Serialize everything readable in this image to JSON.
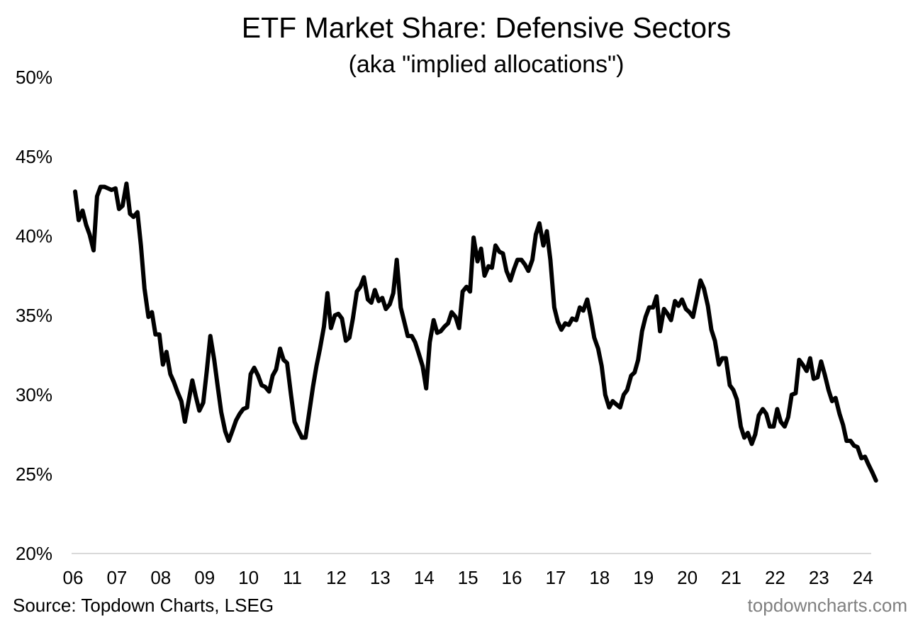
{
  "chart_data": {
    "type": "line",
    "title": "ETF Market Share: Defensive Sectors",
    "subtitle": "(aka \"implied allocations\")",
    "y_ticks": [
      "20%",
      "25%",
      "30%",
      "35%",
      "40%",
      "45%",
      "50%"
    ],
    "ylim": [
      20,
      50
    ],
    "x_ticks": [
      "06",
      "07",
      "08",
      "09",
      "10",
      "11",
      "12",
      "13",
      "14",
      "15",
      "16",
      "17",
      "18",
      "19",
      "20",
      "21",
      "22",
      "23",
      "24"
    ],
    "xlim": [
      2006,
      2024.4
    ],
    "grid": false,
    "line_color": "#000000",
    "baseline_color": "#d9d9d9",
    "series": [
      {
        "points": [
          [
            2006.0,
            42.8
          ],
          [
            2006.08,
            41.0
          ],
          [
            2006.17,
            41.6
          ],
          [
            2006.25,
            40.7
          ],
          [
            2006.33,
            40.1
          ],
          [
            2006.42,
            39.1
          ],
          [
            2006.5,
            42.5
          ],
          [
            2006.58,
            43.1
          ],
          [
            2006.67,
            43.1
          ],
          [
            2006.75,
            43.0
          ],
          [
            2006.83,
            42.9
          ],
          [
            2006.92,
            43.0
          ],
          [
            2007.0,
            41.7
          ],
          [
            2007.08,
            41.9
          ],
          [
            2007.17,
            43.3
          ],
          [
            2007.25,
            41.4
          ],
          [
            2007.33,
            41.2
          ],
          [
            2007.42,
            41.5
          ],
          [
            2007.5,
            39.4
          ],
          [
            2007.58,
            36.7
          ],
          [
            2007.67,
            34.9
          ],
          [
            2007.75,
            35.2
          ],
          [
            2007.83,
            33.8
          ],
          [
            2007.92,
            33.8
          ],
          [
            2008.0,
            31.9
          ],
          [
            2008.08,
            32.7
          ],
          [
            2008.17,
            31.3
          ],
          [
            2008.25,
            30.8
          ],
          [
            2008.33,
            30.2
          ],
          [
            2008.42,
            29.6
          ],
          [
            2008.5,
            28.3
          ],
          [
            2008.58,
            29.5
          ],
          [
            2008.67,
            30.9
          ],
          [
            2008.75,
            29.9
          ],
          [
            2008.83,
            29.0
          ],
          [
            2008.92,
            29.5
          ],
          [
            2009.0,
            31.5
          ],
          [
            2009.08,
            33.7
          ],
          [
            2009.17,
            32.2
          ],
          [
            2009.25,
            30.5
          ],
          [
            2009.33,
            28.9
          ],
          [
            2009.42,
            27.7
          ],
          [
            2009.5,
            27.1
          ],
          [
            2009.58,
            27.7
          ],
          [
            2009.67,
            28.4
          ],
          [
            2009.75,
            28.8
          ],
          [
            2009.83,
            29.1
          ],
          [
            2009.92,
            29.2
          ],
          [
            2010.0,
            31.3
          ],
          [
            2010.08,
            31.7
          ],
          [
            2010.17,
            31.2
          ],
          [
            2010.25,
            30.6
          ],
          [
            2010.33,
            30.5
          ],
          [
            2010.42,
            30.2
          ],
          [
            2010.5,
            31.2
          ],
          [
            2010.58,
            31.6
          ],
          [
            2010.67,
            32.9
          ],
          [
            2010.75,
            32.2
          ],
          [
            2010.83,
            32.0
          ],
          [
            2010.92,
            30.0
          ],
          [
            2011.0,
            28.3
          ],
          [
            2011.08,
            27.8
          ],
          [
            2011.17,
            27.3
          ],
          [
            2011.25,
            27.3
          ],
          [
            2011.33,
            28.8
          ],
          [
            2011.42,
            30.5
          ],
          [
            2011.5,
            31.8
          ],
          [
            2011.58,
            32.9
          ],
          [
            2011.67,
            34.3
          ],
          [
            2011.75,
            36.4
          ],
          [
            2011.83,
            34.2
          ],
          [
            2011.92,
            35.0
          ],
          [
            2012.0,
            35.1
          ],
          [
            2012.08,
            34.8
          ],
          [
            2012.17,
            33.4
          ],
          [
            2012.25,
            33.6
          ],
          [
            2012.33,
            34.8
          ],
          [
            2012.42,
            36.5
          ],
          [
            2012.5,
            36.8
          ],
          [
            2012.58,
            37.4
          ],
          [
            2012.67,
            36.0
          ],
          [
            2012.75,
            35.8
          ],
          [
            2012.83,
            36.6
          ],
          [
            2012.92,
            35.9
          ],
          [
            2013.0,
            36.1
          ],
          [
            2013.08,
            35.4
          ],
          [
            2013.17,
            35.7
          ],
          [
            2013.25,
            36.4
          ],
          [
            2013.33,
            38.5
          ],
          [
            2013.42,
            35.5
          ],
          [
            2013.5,
            34.6
          ],
          [
            2013.58,
            33.7
          ],
          [
            2013.67,
            33.7
          ],
          [
            2013.75,
            33.3
          ],
          [
            2013.83,
            32.6
          ],
          [
            2013.92,
            31.8
          ],
          [
            2014.0,
            30.4
          ],
          [
            2014.08,
            33.3
          ],
          [
            2014.17,
            34.7
          ],
          [
            2014.25,
            33.9
          ],
          [
            2014.33,
            34.0
          ],
          [
            2014.42,
            34.3
          ],
          [
            2014.5,
            34.5
          ],
          [
            2014.58,
            35.2
          ],
          [
            2014.67,
            34.9
          ],
          [
            2014.75,
            34.2
          ],
          [
            2014.83,
            36.5
          ],
          [
            2014.92,
            36.8
          ],
          [
            2015.0,
            36.5
          ],
          [
            2015.08,
            39.9
          ],
          [
            2015.17,
            38.4
          ],
          [
            2015.25,
            39.2
          ],
          [
            2015.33,
            37.5
          ],
          [
            2015.42,
            38.1
          ],
          [
            2015.5,
            38.0
          ],
          [
            2015.58,
            39.4
          ],
          [
            2015.67,
            39.0
          ],
          [
            2015.75,
            38.9
          ],
          [
            2015.83,
            37.8
          ],
          [
            2015.92,
            37.2
          ],
          [
            2016.0,
            37.9
          ],
          [
            2016.08,
            38.5
          ],
          [
            2016.17,
            38.5
          ],
          [
            2016.25,
            38.2
          ],
          [
            2016.33,
            37.8
          ],
          [
            2016.42,
            38.5
          ],
          [
            2016.5,
            40.1
          ],
          [
            2016.58,
            40.8
          ],
          [
            2016.67,
            39.4
          ],
          [
            2016.75,
            40.3
          ],
          [
            2016.83,
            38.5
          ],
          [
            2016.92,
            35.5
          ],
          [
            2017.0,
            34.6
          ],
          [
            2017.08,
            34.1
          ],
          [
            2017.17,
            34.5
          ],
          [
            2017.25,
            34.4
          ],
          [
            2017.33,
            34.8
          ],
          [
            2017.42,
            34.7
          ],
          [
            2017.5,
            35.5
          ],
          [
            2017.58,
            35.3
          ],
          [
            2017.67,
            36.0
          ],
          [
            2017.75,
            34.9
          ],
          [
            2017.83,
            33.6
          ],
          [
            2017.92,
            32.9
          ],
          [
            2018.0,
            31.8
          ],
          [
            2018.08,
            30.0
          ],
          [
            2018.17,
            29.2
          ],
          [
            2018.25,
            29.6
          ],
          [
            2018.33,
            29.4
          ],
          [
            2018.42,
            29.2
          ],
          [
            2018.5,
            30.0
          ],
          [
            2018.58,
            30.3
          ],
          [
            2018.67,
            31.2
          ],
          [
            2018.75,
            31.4
          ],
          [
            2018.83,
            32.2
          ],
          [
            2018.92,
            34.0
          ],
          [
            2019.0,
            34.9
          ],
          [
            2019.08,
            35.5
          ],
          [
            2019.17,
            35.5
          ],
          [
            2019.25,
            36.2
          ],
          [
            2019.33,
            34.0
          ],
          [
            2019.42,
            35.4
          ],
          [
            2019.5,
            35.1
          ],
          [
            2019.58,
            34.7
          ],
          [
            2019.67,
            35.9
          ],
          [
            2019.75,
            35.6
          ],
          [
            2019.83,
            36.0
          ],
          [
            2019.92,
            35.4
          ],
          [
            2020.0,
            35.2
          ],
          [
            2020.08,
            34.9
          ],
          [
            2020.17,
            36.1
          ],
          [
            2020.25,
            37.2
          ],
          [
            2020.33,
            36.7
          ],
          [
            2020.42,
            35.6
          ],
          [
            2020.5,
            34.1
          ],
          [
            2020.58,
            33.4
          ],
          [
            2020.67,
            31.9
          ],
          [
            2020.75,
            32.3
          ],
          [
            2020.83,
            32.3
          ],
          [
            2020.92,
            30.6
          ],
          [
            2021.0,
            30.3
          ],
          [
            2021.08,
            29.7
          ],
          [
            2021.17,
            28.0
          ],
          [
            2021.25,
            27.3
          ],
          [
            2021.33,
            27.6
          ],
          [
            2021.42,
            26.9
          ],
          [
            2021.5,
            27.5
          ],
          [
            2021.58,
            28.7
          ],
          [
            2021.67,
            29.1
          ],
          [
            2021.75,
            28.8
          ],
          [
            2021.83,
            28.0
          ],
          [
            2021.92,
            28.0
          ],
          [
            2022.0,
            29.1
          ],
          [
            2022.08,
            28.3
          ],
          [
            2022.17,
            28.0
          ],
          [
            2022.25,
            28.6
          ],
          [
            2022.33,
            30.0
          ],
          [
            2022.42,
            30.1
          ],
          [
            2022.5,
            32.2
          ],
          [
            2022.58,
            31.9
          ],
          [
            2022.67,
            31.5
          ],
          [
            2022.75,
            32.3
          ],
          [
            2022.83,
            31.0
          ],
          [
            2022.92,
            31.1
          ],
          [
            2023.0,
            32.1
          ],
          [
            2023.08,
            31.3
          ],
          [
            2023.17,
            30.3
          ],
          [
            2023.25,
            29.6
          ],
          [
            2023.33,
            29.8
          ],
          [
            2023.42,
            28.8
          ],
          [
            2023.5,
            28.1
          ],
          [
            2023.58,
            27.1
          ],
          [
            2023.67,
            27.1
          ],
          [
            2023.75,
            26.8
          ],
          [
            2023.83,
            26.7
          ],
          [
            2023.92,
            26.0
          ],
          [
            2024.0,
            26.1
          ],
          [
            2024.08,
            25.6
          ],
          [
            2024.17,
            25.1
          ],
          [
            2024.25,
            24.6
          ]
        ]
      }
    ]
  },
  "footer": {
    "source": "Source: Topdown Charts, LSEG",
    "watermark": "topdowncharts.com"
  }
}
